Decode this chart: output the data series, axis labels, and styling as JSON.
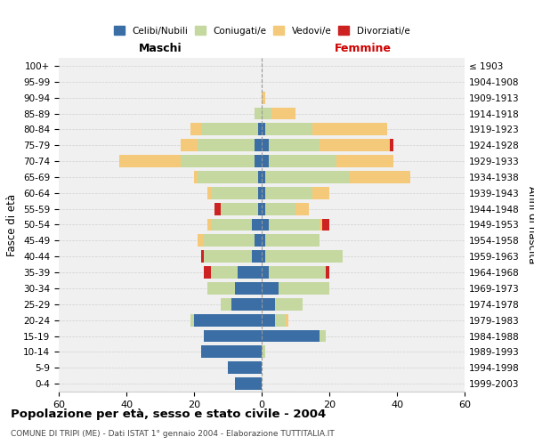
{
  "age_groups": [
    "0-4",
    "5-9",
    "10-14",
    "15-19",
    "20-24",
    "25-29",
    "30-34",
    "35-39",
    "40-44",
    "45-49",
    "50-54",
    "55-59",
    "60-64",
    "65-69",
    "70-74",
    "75-79",
    "80-84",
    "85-89",
    "90-94",
    "95-99",
    "100+"
  ],
  "birth_years": [
    "1999-2003",
    "1994-1998",
    "1989-1993",
    "1984-1988",
    "1979-1983",
    "1974-1978",
    "1969-1973",
    "1964-1968",
    "1959-1963",
    "1954-1958",
    "1949-1953",
    "1944-1948",
    "1939-1943",
    "1934-1938",
    "1929-1933",
    "1924-1928",
    "1919-1923",
    "1914-1918",
    "1909-1913",
    "1904-1908",
    "≤ 1903"
  ],
  "male": {
    "celibi": [
      8,
      10,
      18,
      17,
      20,
      9,
      8,
      7,
      3,
      2,
      3,
      1,
      1,
      1,
      2,
      2,
      1,
      0,
      0,
      0,
      0
    ],
    "coniugati": [
      0,
      0,
      0,
      0,
      1,
      3,
      8,
      8,
      14,
      15,
      12,
      11,
      14,
      18,
      22,
      17,
      17,
      2,
      0,
      0,
      0
    ],
    "vedovi": [
      0,
      0,
      0,
      0,
      0,
      0,
      0,
      0,
      0,
      2,
      1,
      0,
      1,
      1,
      18,
      5,
      3,
      0,
      0,
      0,
      0
    ],
    "divorziati": [
      0,
      0,
      0,
      0,
      0,
      0,
      0,
      2,
      1,
      0,
      0,
      2,
      0,
      0,
      0,
      0,
      0,
      0,
      0,
      0,
      0
    ]
  },
  "female": {
    "nubili": [
      0,
      0,
      0,
      17,
      4,
      4,
      5,
      2,
      1,
      1,
      2,
      1,
      1,
      1,
      2,
      2,
      1,
      0,
      0,
      0,
      0
    ],
    "coniugate": [
      0,
      0,
      1,
      2,
      3,
      8,
      15,
      17,
      23,
      16,
      15,
      9,
      14,
      25,
      20,
      15,
      14,
      3,
      0,
      0,
      0
    ],
    "vedove": [
      0,
      0,
      0,
      0,
      1,
      0,
      0,
      0,
      0,
      0,
      1,
      4,
      5,
      18,
      17,
      21,
      22,
      7,
      1,
      0,
      0
    ],
    "divorziate": [
      0,
      0,
      0,
      0,
      0,
      0,
      0,
      1,
      0,
      0,
      2,
      0,
      0,
      0,
      0,
      1,
      0,
      0,
      0,
      0,
      0
    ]
  },
  "colors": {
    "celibi": "#3a6ea5",
    "coniugati": "#c5d8a0",
    "vedovi": "#f5c97a",
    "divorziati": "#cc2222"
  },
  "xlim": 60,
  "title": "Popolazione per età, sesso e stato civile - 2004",
  "subtitle": "COMUNE DI TRIPI (ME) - Dati ISTAT 1° gennaio 2004 - Elaborazione TUTTITALIA.IT",
  "xlabel_left": "Maschi",
  "xlabel_right": "Femmine",
  "ylabel_left": "Fasce di età",
  "ylabel_right": "Anni di nascita",
  "bg_color": "#f0f0f0",
  "grid_color": "#cccccc"
}
